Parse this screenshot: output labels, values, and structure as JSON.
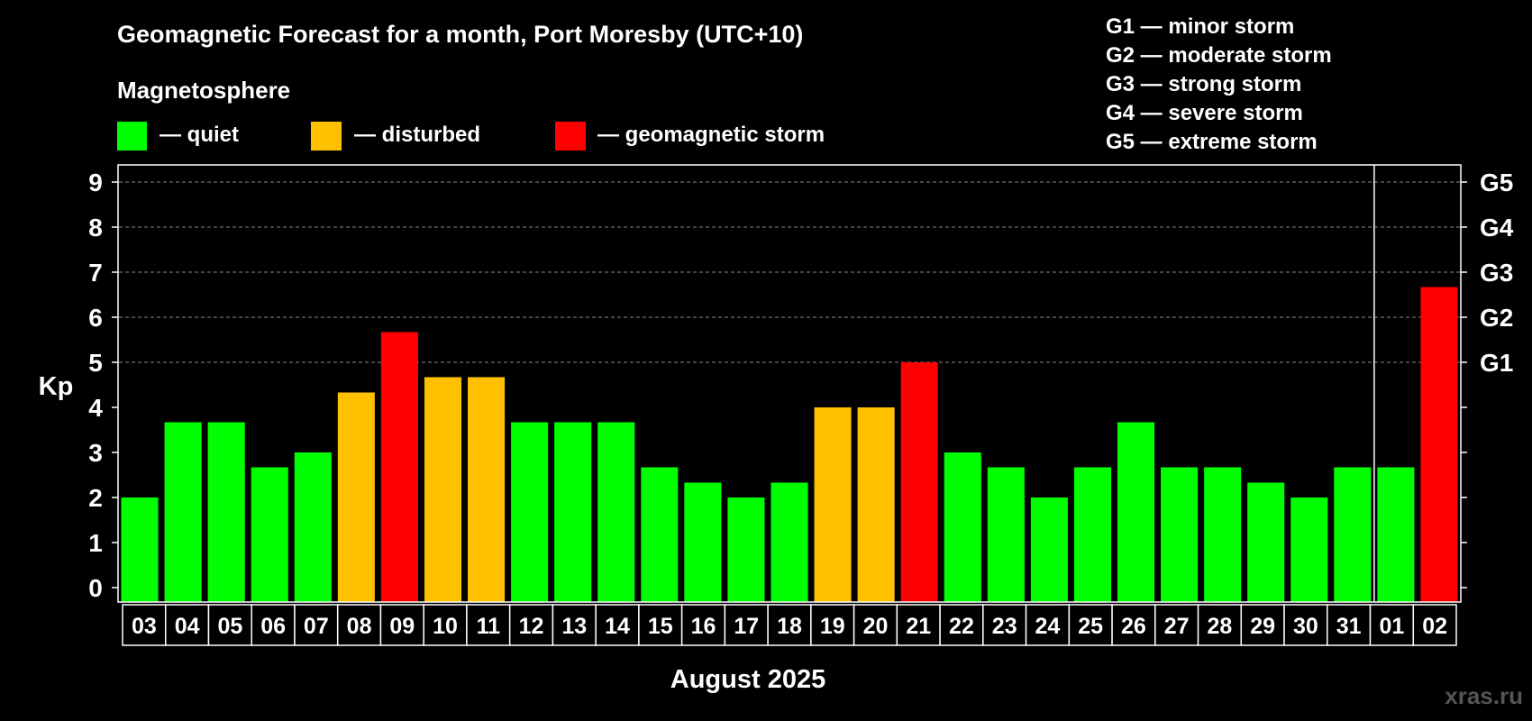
{
  "chart_data": {
    "type": "bar",
    "title": "Geomagnetic Forecast for a month, Port Moresby (UTC+10)",
    "legend": {
      "heading": "Magnetosphere",
      "items": [
        {
          "key": "quiet",
          "label": "— quiet",
          "color": "#00ff00"
        },
        {
          "key": "disturbed",
          "label": "— disturbed",
          "color": "#ffc000"
        },
        {
          "key": "storm",
          "label": "— geomagnetic storm",
          "color": "#ff0000"
        }
      ]
    },
    "storm_scale": [
      "G1 — minor storm",
      "G2 — moderate storm",
      "G3 — strong storm",
      "G4 — severe storm",
      "G5 — extreme storm"
    ],
    "ylabel": "Kp",
    "ylim": [
      0,
      9
    ],
    "yticks": [
      "0",
      "1",
      "2",
      "3",
      "4",
      "5",
      "6",
      "7",
      "8",
      "9"
    ],
    "right_axis": [
      {
        "value": 5,
        "label": "G1"
      },
      {
        "value": 6,
        "label": "G2"
      },
      {
        "value": 7,
        "label": "G3"
      },
      {
        "value": 8,
        "label": "G4"
      },
      {
        "value": 9,
        "label": "G5"
      }
    ],
    "grid_dashed_at": [
      5,
      6,
      7,
      8,
      9
    ],
    "month_break_after_index": 28,
    "xlabel": "August 2025",
    "categories": [
      "03",
      "04",
      "05",
      "06",
      "07",
      "08",
      "09",
      "10",
      "11",
      "12",
      "13",
      "14",
      "15",
      "16",
      "17",
      "18",
      "19",
      "20",
      "21",
      "22",
      "23",
      "24",
      "25",
      "26",
      "27",
      "28",
      "29",
      "30",
      "31",
      "01",
      "02"
    ],
    "values": [
      2.0,
      3.67,
      3.67,
      2.67,
      3.0,
      4.33,
      5.67,
      4.67,
      4.67,
      3.67,
      3.67,
      3.67,
      2.67,
      2.33,
      2.0,
      2.33,
      4.0,
      4.0,
      5.0,
      3.0,
      2.67,
      2.0,
      2.67,
      3.67,
      2.67,
      2.67,
      2.33,
      2.0,
      2.67,
      2.67,
      6.67
    ],
    "status": [
      "quiet",
      "quiet",
      "quiet",
      "quiet",
      "quiet",
      "disturbed",
      "storm",
      "disturbed",
      "disturbed",
      "quiet",
      "quiet",
      "quiet",
      "quiet",
      "quiet",
      "quiet",
      "quiet",
      "disturbed",
      "disturbed",
      "storm",
      "quiet",
      "quiet",
      "quiet",
      "quiet",
      "quiet",
      "quiet",
      "quiet",
      "quiet",
      "quiet",
      "quiet",
      "quiet",
      "storm"
    ]
  },
  "watermark": "xras.ru"
}
